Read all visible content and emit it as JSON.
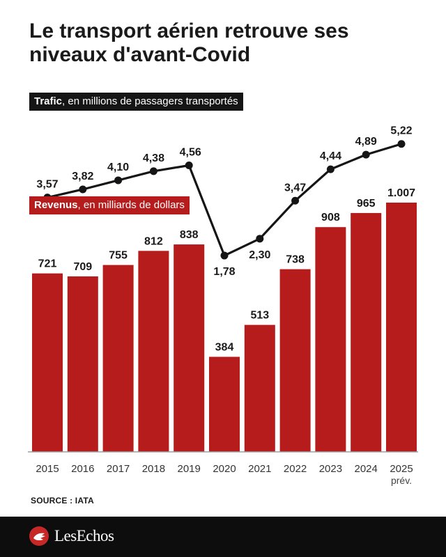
{
  "title": "Le transport aérien retrouve ses niveaux d'avant-Covid",
  "legend_traffic": {
    "bold": "Trafic",
    "rest": ", en millions de passagers transportés"
  },
  "legend_revenue": {
    "bold": "Revenus",
    "rest": ", en milliards de dollars"
  },
  "source": "SOURCE : IATA",
  "logo": "LesEchos",
  "colors": {
    "bar": "#b71c1c",
    "line": "#151515",
    "axis": "#9e9e9e"
  },
  "chart_data": [
    {
      "type": "bar",
      "title": "Revenus, en milliards de dollars",
      "categories": [
        "2015",
        "2016",
        "2017",
        "2018",
        "2019",
        "2020",
        "2021",
        "2022",
        "2023",
        "2024",
        "2025"
      ],
      "category_sublabels": [
        "",
        "",
        "",
        "",
        "",
        "",
        "",
        "",
        "",
        "",
        "prév."
      ],
      "values": [
        721,
        709,
        755,
        812,
        838,
        384,
        513,
        738,
        908,
        965,
        1007
      ],
      "value_labels": [
        "721",
        "709",
        "755",
        "812",
        "838",
        "384",
        "513",
        "738",
        "908",
        "965",
        "1.007"
      ],
      "ylim": [
        0,
        1007
      ]
    },
    {
      "type": "line",
      "title": "Trafic, en millions de passagers transportés",
      "categories": [
        "2015",
        "2016",
        "2017",
        "2018",
        "2019",
        "2020",
        "2021",
        "2022",
        "2023",
        "2024",
        "2025"
      ],
      "values": [
        3.57,
        3.82,
        4.1,
        4.38,
        4.56,
        1.78,
        2.3,
        3.47,
        4.44,
        4.89,
        5.22
      ],
      "value_labels": [
        "3,57",
        "3,82",
        "4,10",
        "4,38",
        "4,56",
        "1,78",
        "2,30",
        "3,47",
        "4,44",
        "4,89",
        "5,22"
      ]
    }
  ]
}
